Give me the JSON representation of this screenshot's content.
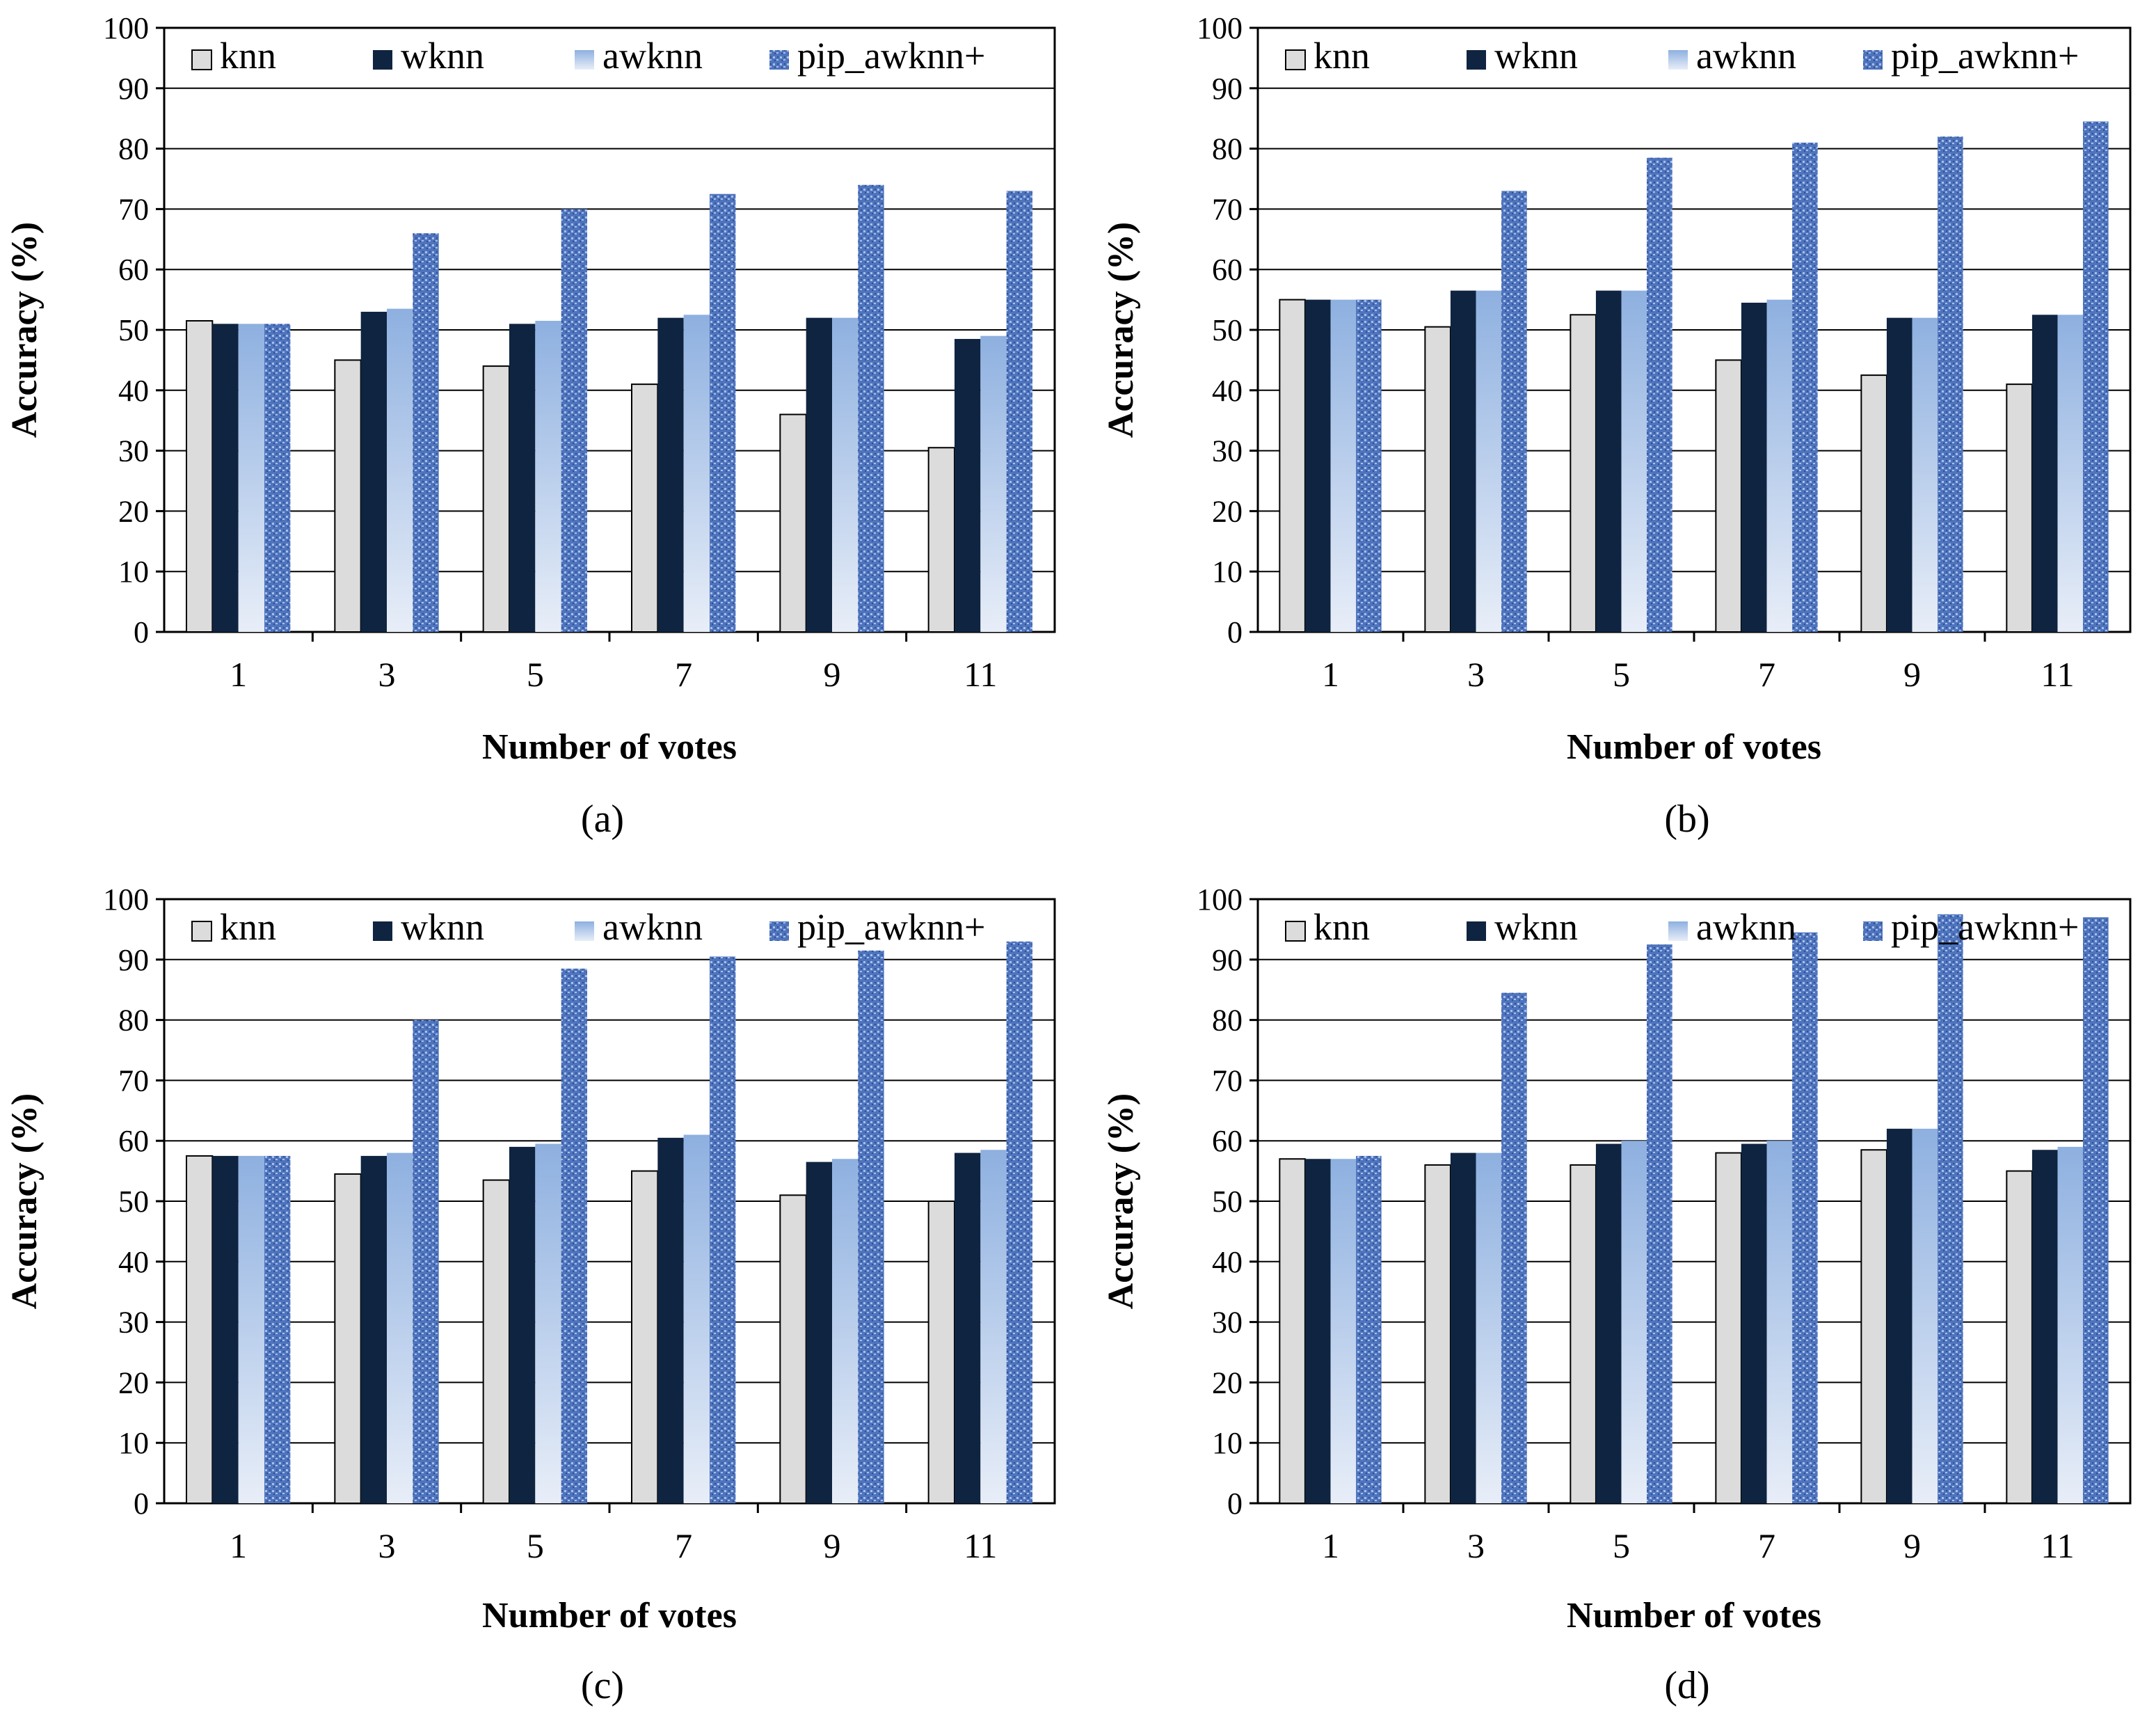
{
  "figure": {
    "panels": [
      "(a)",
      "(b)",
      "(c)",
      "(d)"
    ]
  },
  "colors": {
    "knn": "#dcdcdc",
    "wknn": "#0f2440",
    "awknn_top": "#8eb0e0",
    "awknn_bottom": "#e8eef8",
    "pip_awknn": "#4f74be",
    "pip_awknn_dot": "#a8c0e8",
    "grid": "#000000"
  },
  "chart_data": [
    {
      "type": "bar",
      "panel": "(a)",
      "categories": [
        "1",
        "3",
        "5",
        "7",
        "9",
        "11"
      ],
      "xlabel": "Number of votes",
      "ylabel": "Accuracy (%)",
      "ylim": [
        0,
        100
      ],
      "yticks": [
        0,
        10,
        20,
        30,
        40,
        50,
        60,
        70,
        80,
        90,
        100
      ],
      "grid": true,
      "legend_position": "top",
      "series": [
        {
          "name": "knn",
          "values": [
            51.5,
            45,
            44,
            41,
            36,
            30.5
          ]
        },
        {
          "name": "wknn",
          "values": [
            51,
            53,
            51,
            52,
            52,
            48.5
          ]
        },
        {
          "name": "awknn",
          "values": [
            51,
            53.5,
            51.5,
            52.5,
            52,
            49
          ]
        },
        {
          "name": "pip_awknn+",
          "values": [
            51,
            66,
            70,
            72.5,
            74,
            73
          ]
        }
      ]
    },
    {
      "type": "bar",
      "panel": "(b)",
      "categories": [
        "1",
        "3",
        "5",
        "7",
        "9",
        "11"
      ],
      "xlabel": "Number of votes",
      "ylabel": "Accuracy (%)",
      "ylim": [
        0,
        100
      ],
      "yticks": [
        0,
        10,
        20,
        30,
        40,
        50,
        60,
        70,
        80,
        90,
        100
      ],
      "grid": true,
      "legend_position": "top",
      "series": [
        {
          "name": "knn",
          "values": [
            55,
            50.5,
            52.5,
            45,
            42.5,
            41
          ]
        },
        {
          "name": "wknn",
          "values": [
            55,
            56.5,
            56.5,
            54.5,
            52,
            52.5
          ]
        },
        {
          "name": "awknn",
          "values": [
            55,
            56.5,
            56.5,
            55,
            52,
            52.5
          ]
        },
        {
          "name": "pip_awknn+",
          "values": [
            55,
            73,
            78.5,
            81,
            82,
            84.5
          ]
        }
      ]
    },
    {
      "type": "bar",
      "panel": "(c)",
      "categories": [
        "1",
        "3",
        "5",
        "7",
        "9",
        "11"
      ],
      "xlabel": "Number of votes",
      "ylabel": "Accuracy (%)",
      "ylim": [
        0,
        100
      ],
      "yticks": [
        0,
        10,
        20,
        30,
        40,
        50,
        60,
        70,
        80,
        90,
        100
      ],
      "grid": true,
      "legend_position": "top",
      "series": [
        {
          "name": "knn",
          "values": [
            57.5,
            54.5,
            53.5,
            55,
            51,
            50
          ]
        },
        {
          "name": "wknn",
          "values": [
            57.5,
            57.5,
            59,
            60.5,
            56.5,
            58
          ]
        },
        {
          "name": "awknn",
          "values": [
            57.5,
            58,
            59.5,
            61,
            57,
            58.5
          ]
        },
        {
          "name": "pip_awknn+",
          "values": [
            57.5,
            80,
            88.5,
            90.5,
            91.5,
            93
          ]
        }
      ]
    },
    {
      "type": "bar",
      "panel": "(d)",
      "categories": [
        "1",
        "3",
        "5",
        "7",
        "9",
        "11"
      ],
      "xlabel": "Number of votes",
      "ylabel": "Accuracy (%)",
      "ylim": [
        0,
        100
      ],
      "yticks": [
        0,
        10,
        20,
        30,
        40,
        50,
        60,
        70,
        80,
        90,
        100
      ],
      "grid": true,
      "legend_position": "top",
      "series": [
        {
          "name": "knn",
          "values": [
            57,
            56,
            56,
            58,
            58.5,
            55
          ]
        },
        {
          "name": "wknn",
          "values": [
            57,
            58,
            59.5,
            59.5,
            62,
            58.5
          ]
        },
        {
          "name": "awknn",
          "values": [
            57,
            58,
            60,
            60,
            62,
            59
          ]
        },
        {
          "name": "pip_awknn+",
          "values": [
            57.5,
            84.5,
            92.5,
            94.5,
            97.5,
            97
          ]
        }
      ]
    }
  ]
}
